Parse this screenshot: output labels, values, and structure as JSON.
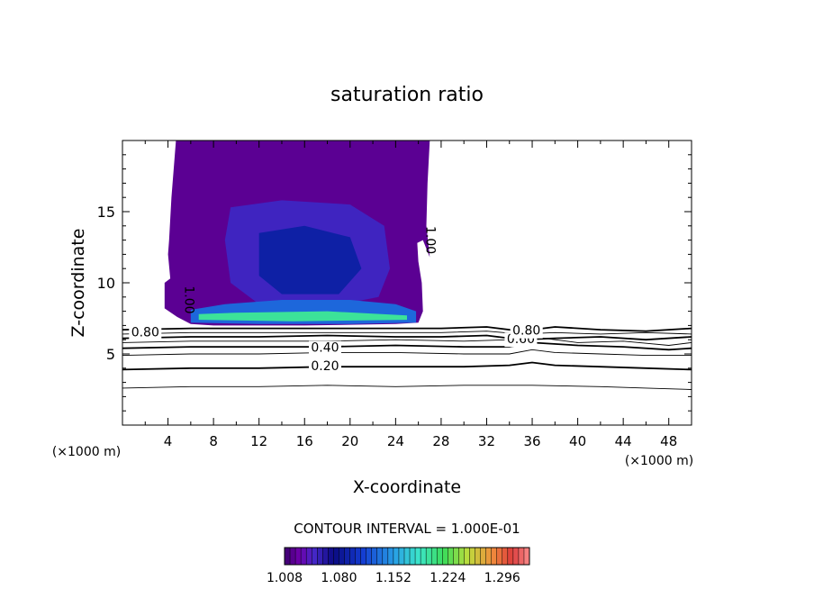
{
  "chart_data": {
    "type": "contour",
    "title": "saturation ratio",
    "xlabel": "X-coordinate",
    "ylabel": "Z-coordinate",
    "x_unit_left": "(×1000 m)",
    "x_unit_right": "(×1000 m)",
    "xlim": [
      0,
      50
    ],
    "ylim": [
      0,
      20
    ],
    "x_ticks": [
      4,
      8,
      12,
      16,
      20,
      24,
      28,
      32,
      36,
      40,
      44,
      48
    ],
    "y_ticks": [
      5,
      10,
      15
    ],
    "contour_interval_text": "CONTOUR INTERVAL = 1.000E-01",
    "contour_labels": [
      {
        "text": "0.20",
        "x": 17.8,
        "z": 4.1
      },
      {
        "text": "0.40",
        "x": 17.8,
        "z": 5.4
      },
      {
        "text": "0.60",
        "x": 35.0,
        "z": 6.0
      },
      {
        "text": "0.80",
        "x": 35.5,
        "z": 6.6
      },
      {
        "text": "0.80",
        "x": 2.0,
        "z": 6.5
      },
      {
        "text": "1.00",
        "x": 27.0,
        "z": 13.0
      },
      {
        "text": "1.00",
        "x": 5.8,
        "z": 8.8
      }
    ],
    "contour_lines": [
      {
        "level": 0.1,
        "points": [
          [
            0,
            2.6
          ],
          [
            6,
            2.7
          ],
          [
            12,
            2.7
          ],
          [
            18,
            2.8
          ],
          [
            24,
            2.7
          ],
          [
            30,
            2.8
          ],
          [
            36,
            2.8
          ],
          [
            42,
            2.7
          ],
          [
            46,
            2.6
          ],
          [
            50,
            2.5
          ]
        ]
      },
      {
        "level": 0.2,
        "points": [
          [
            0,
            3.9
          ],
          [
            6,
            4.0
          ],
          [
            12,
            4.0
          ],
          [
            18,
            4.1
          ],
          [
            24,
            4.1
          ],
          [
            30,
            4.1
          ],
          [
            34,
            4.2
          ],
          [
            36,
            4.4
          ],
          [
            38,
            4.2
          ],
          [
            42,
            4.1
          ],
          [
            46,
            4.0
          ],
          [
            50,
            3.9
          ]
        ]
      },
      {
        "level": 0.3,
        "points": [
          [
            0,
            4.9
          ],
          [
            6,
            5.0
          ],
          [
            12,
            5.0
          ],
          [
            18,
            5.1
          ],
          [
            24,
            5.1
          ],
          [
            30,
            5.0
          ],
          [
            34,
            5.0
          ],
          [
            36,
            5.3
          ],
          [
            38,
            5.1
          ],
          [
            42,
            5.0
          ],
          [
            46,
            4.9
          ],
          [
            50,
            4.9
          ]
        ]
      },
      {
        "level": 0.4,
        "points": [
          [
            0,
            5.4
          ],
          [
            6,
            5.5
          ],
          [
            12,
            5.5
          ],
          [
            18,
            5.5
          ],
          [
            24,
            5.6
          ],
          [
            30,
            5.5
          ],
          [
            34,
            5.5
          ],
          [
            36,
            5.8
          ],
          [
            40,
            5.6
          ],
          [
            44,
            5.5
          ],
          [
            48,
            5.3
          ],
          [
            50,
            5.4
          ]
        ]
      },
      {
        "level": 0.5,
        "points": [
          [
            0,
            5.8
          ],
          [
            6,
            5.9
          ],
          [
            12,
            5.9
          ],
          [
            18,
            5.9
          ],
          [
            24,
            6.0
          ],
          [
            30,
            5.9
          ],
          [
            34,
            6.0
          ],
          [
            37,
            6.1
          ],
          [
            40,
            5.8
          ],
          [
            44,
            5.9
          ],
          [
            48,
            5.6
          ],
          [
            50,
            5.8
          ]
        ]
      },
      {
        "level": 0.6,
        "points": [
          [
            0,
            6.1
          ],
          [
            6,
            6.2
          ],
          [
            12,
            6.2
          ],
          [
            18,
            6.3
          ],
          [
            24,
            6.2
          ],
          [
            28,
            6.2
          ],
          [
            32,
            6.3
          ],
          [
            35,
            6.0
          ],
          [
            38,
            6.1
          ],
          [
            42,
            6.2
          ],
          [
            46,
            6.0
          ],
          [
            50,
            6.2
          ]
        ]
      },
      {
        "level": 0.7,
        "points": [
          [
            0,
            6.4
          ],
          [
            6,
            6.5
          ],
          [
            12,
            6.5
          ],
          [
            18,
            6.5
          ],
          [
            24,
            6.5
          ],
          [
            28,
            6.5
          ],
          [
            32,
            6.6
          ],
          [
            35,
            6.4
          ],
          [
            38,
            6.5
          ],
          [
            42,
            6.4
          ],
          [
            46,
            6.5
          ],
          [
            50,
            6.4
          ]
        ]
      },
      {
        "level": 0.8,
        "points": [
          [
            0,
            6.7
          ],
          [
            6,
            6.8
          ],
          [
            12,
            6.8
          ],
          [
            18,
            6.8
          ],
          [
            24,
            6.8
          ],
          [
            28,
            6.8
          ],
          [
            32,
            6.9
          ],
          [
            35,
            6.6
          ],
          [
            38,
            6.9
          ],
          [
            42,
            6.7
          ],
          [
            46,
            6.6
          ],
          [
            50,
            6.8
          ]
        ]
      }
    ],
    "fill_regions": [
      {
        "value": 1.02,
        "points": [
          [
            4.7,
            20
          ],
          [
            4.3,
            16
          ],
          [
            4.1,
            13
          ],
          [
            4.0,
            12
          ],
          [
            4.2,
            10.3
          ],
          [
            3.7,
            10
          ],
          [
            3.7,
            8.2
          ],
          [
            4.8,
            7.6
          ],
          [
            6.0,
            7.1
          ],
          [
            8,
            7.0
          ],
          [
            16,
            7.0
          ],
          [
            24,
            7.1
          ],
          [
            26,
            7.2
          ],
          [
            26.4,
            8.0
          ],
          [
            26.3,
            10
          ],
          [
            26.0,
            11.5
          ],
          [
            25.9,
            12.8
          ],
          [
            26.4,
            13.0
          ],
          [
            27.0,
            11.8
          ],
          [
            26.7,
            14
          ],
          [
            26.8,
            17
          ],
          [
            27.0,
            20
          ]
        ]
      },
      {
        "value": 1.05,
        "points": [
          [
            9.5,
            15.3
          ],
          [
            14,
            15.8
          ],
          [
            20,
            15.5
          ],
          [
            23,
            14
          ],
          [
            23.5,
            11
          ],
          [
            22.5,
            9
          ],
          [
            18,
            8.3
          ],
          [
            12,
            8.5
          ],
          [
            9.5,
            10
          ],
          [
            9.0,
            13
          ]
        ]
      },
      {
        "value": 1.09,
        "points": [
          [
            12,
            13.5
          ],
          [
            16,
            14.0
          ],
          [
            20,
            13.2
          ],
          [
            21,
            11
          ],
          [
            19,
            9.2
          ],
          [
            14,
            9.2
          ],
          [
            12,
            10.5
          ]
        ]
      },
      {
        "value": 1.13,
        "points": [
          [
            6.0,
            7.2
          ],
          [
            12,
            7.1
          ],
          [
            20,
            7.1
          ],
          [
            25.8,
            7.2
          ],
          [
            25.8,
            8.0
          ],
          [
            24,
            8.5
          ],
          [
            20,
            8.8
          ],
          [
            14,
            8.8
          ],
          [
            9,
            8.5
          ],
          [
            6,
            8.1
          ]
        ]
      },
      {
        "value": 1.2,
        "points": [
          [
            6.7,
            7.4
          ],
          [
            15,
            7.3
          ],
          [
            25,
            7.4
          ],
          [
            25,
            7.7
          ],
          [
            18,
            8.0
          ],
          [
            10,
            7.9
          ],
          [
            6.7,
            7.8
          ]
        ]
      }
    ],
    "colorbar": {
      "min": 1.008,
      "max": 1.332,
      "tick_labels": [
        "1.008",
        "1.080",
        "1.152",
        "1.224",
        "1.296"
      ]
    }
  }
}
